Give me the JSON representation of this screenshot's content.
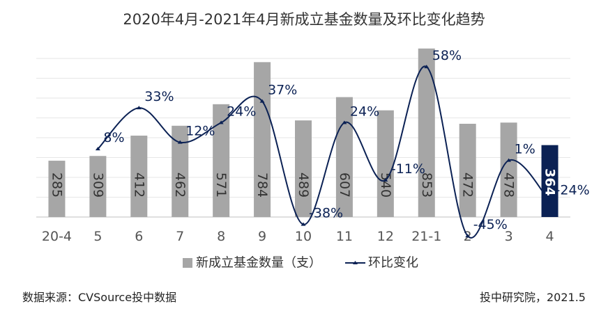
{
  "chart_data": {
    "type": "bar",
    "title": "2020年4月-2021年4月新成立基金数量及环比变化趋势",
    "categories": [
      "20-4",
      "5",
      "6",
      "7",
      "8",
      "9",
      "10",
      "11",
      "12",
      "21-1",
      "2",
      "3",
      "4"
    ],
    "series": [
      {
        "name": "新成立基金数量（支）",
        "type": "bar",
        "values": [
          285,
          309,
          412,
          462,
          571,
          784,
          489,
          607,
          540,
          853,
          472,
          478,
          364
        ],
        "color": "#a6a6a6",
        "highlight_last_color": "#0b2154"
      },
      {
        "name": "环比变化",
        "type": "line",
        "values": [
          null,
          8,
          33,
          12,
          24,
          37,
          -38,
          24,
          -11,
          58,
          -45,
          1,
          -24
        ],
        "labels": [
          "",
          "8%",
          "33%",
          "12%",
          "24%",
          "37%",
          "-38%",
          "24%",
          "-11%",
          "58%",
          "-45%",
          "1%",
          "-24%"
        ],
        "color": "#0b2154"
      }
    ],
    "grid": true,
    "legend": "bottom"
  },
  "footer": {
    "source": "数据来源：CVSource投中数据",
    "publisher": "投中研究院，2021.5"
  }
}
